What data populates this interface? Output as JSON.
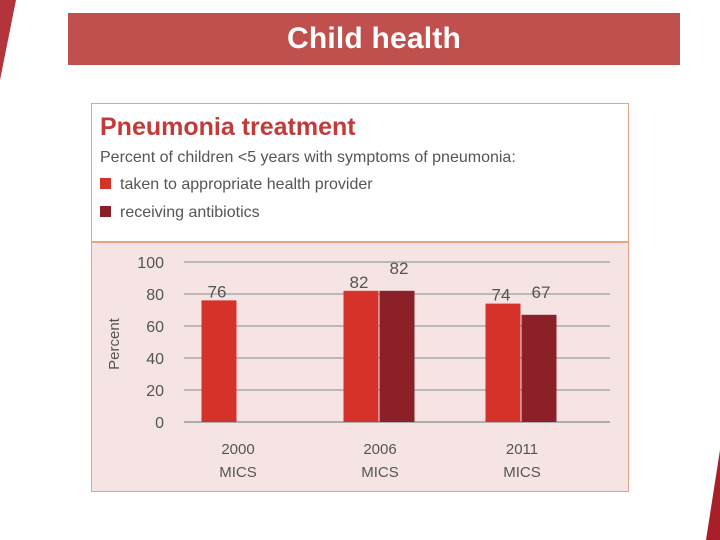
{
  "slide": {
    "title": "Child health"
  },
  "colors": {
    "title_bar": "#c0504d",
    "heading": "#c23b3b",
    "panel_bg": "#f6e4e4",
    "panel_border": "#e3a58a",
    "series_provider": "#d5322c",
    "series_antibiotics": "#8b2028"
  },
  "chart_data": {
    "type": "bar",
    "title": "Pneumonia treatment",
    "subtitle": "Percent of children <5 years with symptoms of pneumonia:",
    "ylabel": "Percent",
    "xlabel": "",
    "ylim": [
      0,
      100
    ],
    "yticks": [
      0,
      20,
      40,
      60,
      80,
      100
    ],
    "grid": true,
    "legend_position": "top-left",
    "categories": [
      "2000 MICS",
      "2006 MICS",
      "2011 MICS"
    ],
    "category_lines": [
      [
        "2000",
        "MICS"
      ],
      [
        "2006",
        "MICS"
      ],
      [
        "2011",
        "MICS"
      ]
    ],
    "series": [
      {
        "name": "taken to appropriate health provider",
        "color": "#d5322c",
        "values": [
          76,
          82,
          74
        ]
      },
      {
        "name": "receiving antibiotics",
        "color": "#8b2028",
        "values": [
          null,
          82,
          67
        ]
      }
    ]
  }
}
